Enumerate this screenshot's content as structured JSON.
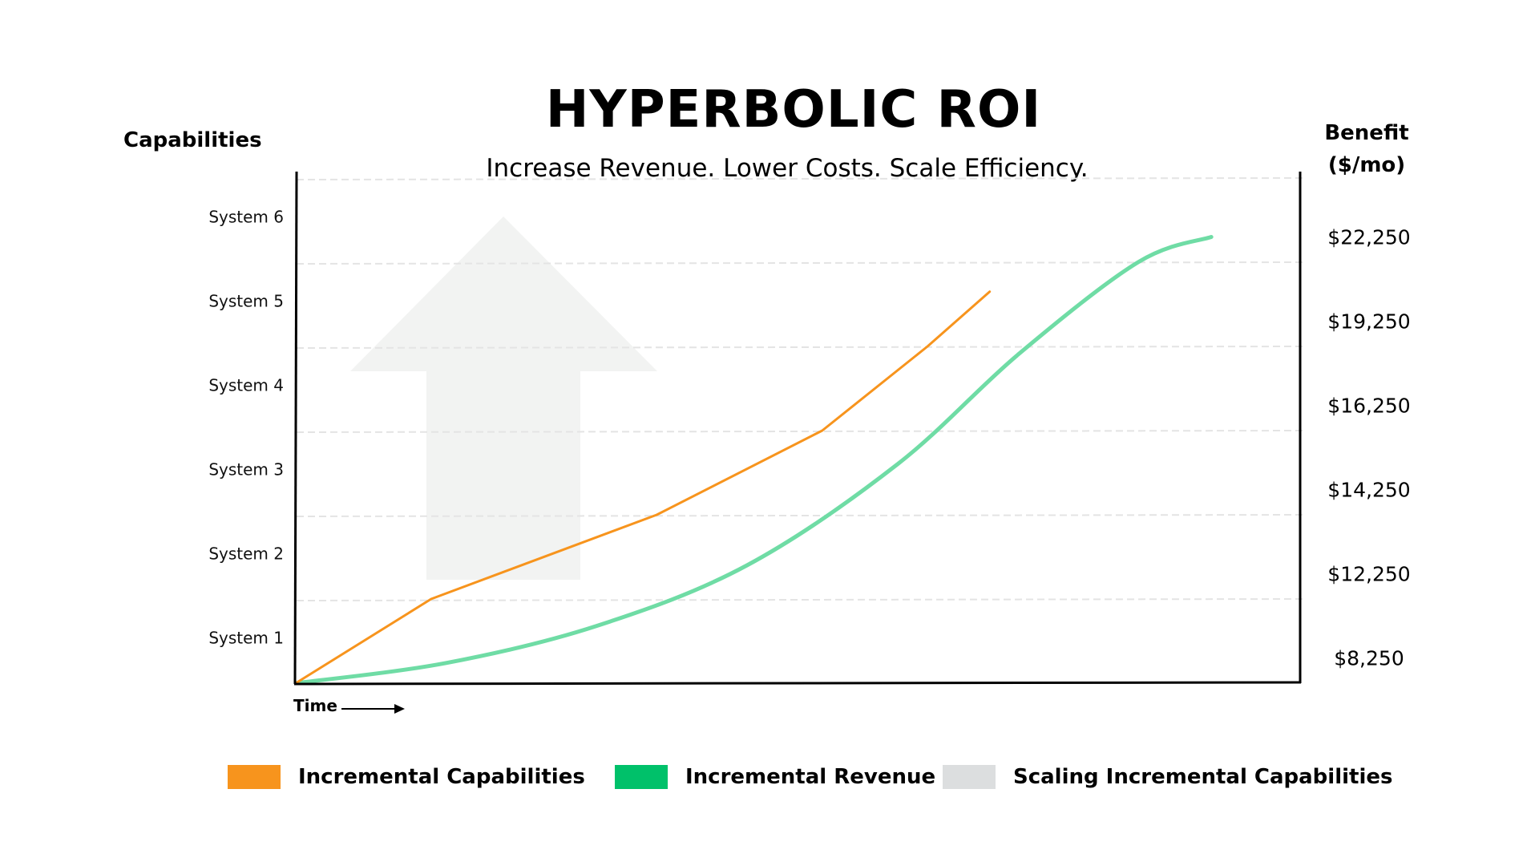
{
  "chart_data": {
    "type": "line",
    "title": "HYPERBOLIC ROI",
    "subtitle": "Increase Revenue.  Lower Costs.  Scale Efficiency.",
    "left_axis_title": "Capabilities",
    "right_axis_title_line1": "Benefit",
    "right_axis_title_line2": "($/mo)",
    "xlabel": "Time",
    "capability_ticks": [
      "System 1",
      "System 2",
      "System 3",
      "System 4",
      "System 5",
      "System 6"
    ],
    "benefit_ticks": [
      "$8,250",
      "$12,250",
      "$14,250",
      "$16,250",
      "$19,250",
      "$22,250"
    ],
    "grid": true,
    "legend_position": "bottom",
    "series": [
      {
        "name": "Incremental Capabilities",
        "color": "#F7941D",
        "axis": "capabilities",
        "points": [
          [
            0,
            0
          ],
          [
            0.135,
            1
          ],
          [
            0.36,
            2
          ],
          [
            0.525,
            3
          ],
          [
            0.63,
            4
          ],
          [
            0.692,
            4.65
          ]
        ]
      },
      {
        "name": "Incremental Revenue",
        "color": "#6FDCA5",
        "axis": "benefit",
        "points": [
          [
            0,
            0
          ],
          [
            0.15,
            0.24
          ],
          [
            0.3,
            0.68
          ],
          [
            0.45,
            1.4
          ],
          [
            0.6,
            2.6
          ],
          [
            0.72,
            3.9
          ],
          [
            0.84,
            5.0
          ],
          [
            0.913,
            5.3
          ]
        ]
      },
      {
        "name": "Scaling Incremental Capabilities",
        "color": "#F2F3F2",
        "shape": "up-arrow"
      }
    ]
  },
  "legend": [
    {
      "label": "Incremental Capabilities",
      "color": "#F7941D"
    },
    {
      "label": "Incremental Revenue",
      "color": "#00C16A"
    },
    {
      "label": "Scaling Incremental Capabilities",
      "color": "#DCDEDF"
    }
  ]
}
